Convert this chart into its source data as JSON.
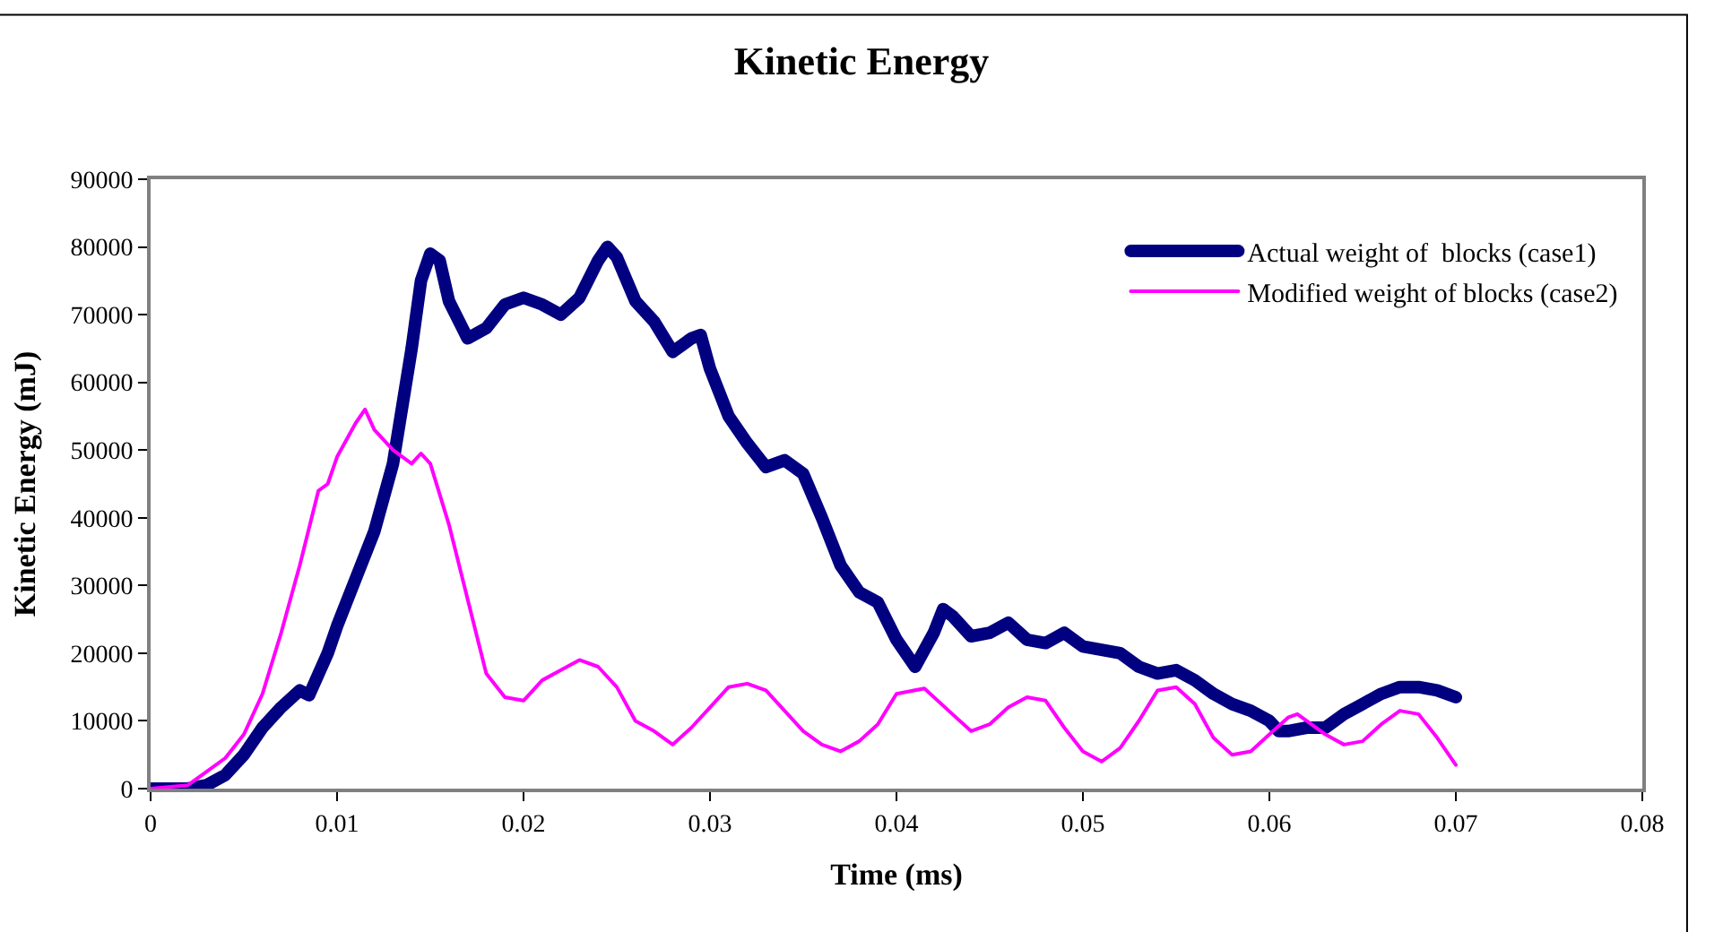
{
  "chart_data": {
    "type": "line",
    "title": "Kinetic Energy",
    "xlabel": "Time (ms)",
    "ylabel": "Kinetic Energy (mJ)",
    "xlim": [
      0,
      0.08
    ],
    "xticks": [
      0,
      0.01,
      0.02,
      0.03,
      0.04,
      0.05,
      0.06,
      0.07,
      0.08
    ],
    "ylim": [
      0,
      90000
    ],
    "yticks": [
      0,
      10000,
      20000,
      30000,
      40000,
      50000,
      60000,
      70000,
      80000,
      90000
    ],
    "grid": false,
    "legend": "top right",
    "marker": "none",
    "line_style": "solid",
    "series": [
      {
        "name": "Actual weight of  blocks (case1)",
        "color": "#000080",
        "x": [
          0,
          0.002,
          0.003,
          0.004,
          0.005,
          0.006,
          0.007,
          0.008,
          0.0085,
          0.0095,
          0.01,
          0.011,
          0.012,
          0.013,
          0.014,
          0.0145,
          0.015,
          0.0155,
          0.016,
          0.017,
          0.018,
          0.019,
          0.02,
          0.021,
          0.022,
          0.023,
          0.024,
          0.0245,
          0.025,
          0.026,
          0.027,
          0.028,
          0.029,
          0.0295,
          0.03,
          0.031,
          0.032,
          0.033,
          0.034,
          0.035,
          0.036,
          0.037,
          0.038,
          0.039,
          0.04,
          0.041,
          0.042,
          0.0425,
          0.043,
          0.044,
          0.045,
          0.046,
          0.047,
          0.048,
          0.049,
          0.05,
          0.051,
          0.052,
          0.053,
          0.054,
          0.055,
          0.056,
          0.057,
          0.058,
          0.059,
          0.06,
          0.0605,
          0.061,
          0.062,
          0.063,
          0.064,
          0.065,
          0.066,
          0.067,
          0.068,
          0.069,
          0.07
        ],
        "values": [
          0,
          0,
          500,
          2000,
          5000,
          9000,
          12000,
          14500,
          13800,
          20000,
          24000,
          31000,
          38000,
          48000,
          65000,
          75000,
          79000,
          78000,
          72000,
          66500,
          68000,
          71500,
          72500,
          71500,
          70000,
          72500,
          78000,
          80000,
          78500,
          72000,
          69000,
          64500,
          66500,
          67000,
          62000,
          55000,
          51000,
          47500,
          48500,
          46500,
          40000,
          33000,
          29000,
          27500,
          22000,
          18000,
          23000,
          26500,
          25500,
          22500,
          23000,
          24500,
          22000,
          21500,
          23000,
          21000,
          20500,
          20000,
          18000,
          17000,
          17500,
          16000,
          14000,
          12500,
          11500,
          10000,
          8500,
          8500,
          9000,
          9000,
          11000,
          12500,
          14000,
          15000,
          15000,
          14500,
          13500
        ]
      },
      {
        "name": "Modified weight of blocks (case2)",
        "color": "#ff00ff",
        "x": [
          0,
          0.002,
          0.003,
          0.004,
          0.005,
          0.006,
          0.007,
          0.008,
          0.009,
          0.0095,
          0.01,
          0.011,
          0.0115,
          0.012,
          0.013,
          0.014,
          0.0145,
          0.015,
          0.016,
          0.017,
          0.018,
          0.019,
          0.02,
          0.021,
          0.022,
          0.023,
          0.024,
          0.025,
          0.026,
          0.027,
          0.028,
          0.029,
          0.03,
          0.031,
          0.032,
          0.033,
          0.034,
          0.035,
          0.036,
          0.037,
          0.038,
          0.039,
          0.04,
          0.0415,
          0.043,
          0.044,
          0.045,
          0.046,
          0.047,
          0.048,
          0.049,
          0.05,
          0.051,
          0.052,
          0.053,
          0.054,
          0.055,
          0.056,
          0.057,
          0.058,
          0.059,
          0.06,
          0.061,
          0.0615,
          0.062,
          0.063,
          0.064,
          0.065,
          0.066,
          0.067,
          0.068,
          0.069,
          0.07
        ],
        "values": [
          0,
          500,
          2500,
          4500,
          8000,
          14000,
          23000,
          33000,
          44000,
          45000,
          49000,
          54000,
          56000,
          53000,
          50000,
          48000,
          49500,
          48000,
          39000,
          28000,
          17000,
          13500,
          13000,
          16000,
          17500,
          19000,
          18000,
          15000,
          10000,
          8500,
          6500,
          9000,
          12000,
          15000,
          15500,
          14500,
          11500,
          8500,
          6500,
          5500,
          7000,
          9500,
          14000,
          14800,
          11000,
          8500,
          9500,
          12000,
          13500,
          13000,
          9000,
          5500,
          4000,
          6000,
          10000,
          14500,
          15000,
          12500,
          7500,
          5000,
          5500,
          8000,
          10500,
          11000,
          10000,
          8000,
          6500,
          7000,
          9500,
          11500,
          11000,
          7500,
          3500
        ]
      }
    ]
  }
}
